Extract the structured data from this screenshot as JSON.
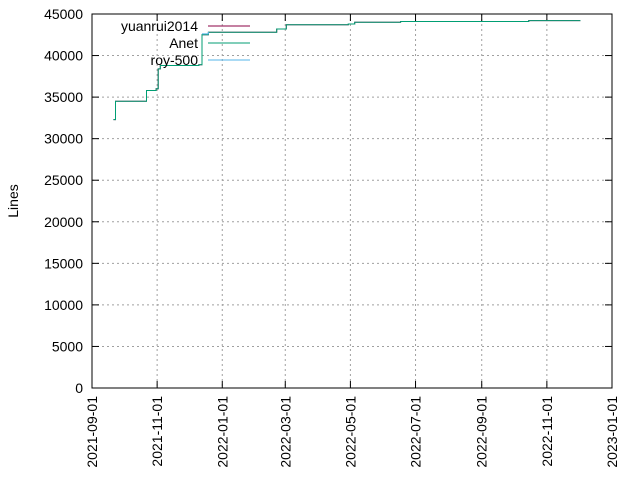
{
  "chart_data": {
    "type": "line",
    "title": "",
    "xlabel": "",
    "ylabel": "Lines",
    "xlim": [
      "2021-09-01",
      "2023-01-01"
    ],
    "ylim": [
      0,
      45000
    ],
    "x_ticks": [
      "2021-09-01",
      "2021-11-01",
      "2022-01-01",
      "2022-03-01",
      "2022-05-01",
      "2022-07-01",
      "2022-09-01",
      "2022-11-01",
      "2023-01-01"
    ],
    "y_ticks": [
      "0",
      "5000",
      "10000",
      "15000",
      "20000",
      "25000",
      "30000",
      "35000",
      "40000",
      "45000"
    ],
    "grid": true,
    "legend_position": "top-left",
    "series": [
      {
        "name": "yuanrui2014",
        "color": "#8b0046",
        "points": [
          {
            "x": "2021-09-21",
            "y": 32300
          },
          {
            "x": "2021-09-23",
            "y": 34500
          },
          {
            "x": "2021-10-13",
            "y": 34500
          },
          {
            "x": "2021-10-22",
            "y": 35800
          },
          {
            "x": "2021-10-31",
            "y": 36000
          },
          {
            "x": "2021-11-02",
            "y": 38400
          },
          {
            "x": "2021-11-04",
            "y": 38800
          },
          {
            "x": "2021-12-10",
            "y": 38900
          },
          {
            "x": "2021-12-13",
            "y": 42500
          },
          {
            "x": "2021-12-19",
            "y": 42800
          },
          {
            "x": "2022-02-21",
            "y": 43200
          },
          {
            "x": "2022-03-02",
            "y": 43700
          },
          {
            "x": "2022-04-29",
            "y": 43800
          },
          {
            "x": "2022-05-05",
            "y": 44000
          },
          {
            "x": "2022-06-17",
            "y": 44100
          },
          {
            "x": "2022-10-15",
            "y": 44200
          },
          {
            "x": "2022-12-02",
            "y": 44250
          }
        ]
      },
      {
        "name": "Anet",
        "color": "#009e73",
        "points": [
          {
            "x": "2021-09-21",
            "y": 32300
          },
          {
            "x": "2021-09-23",
            "y": 34500
          },
          {
            "x": "2021-10-13",
            "y": 34500
          },
          {
            "x": "2021-10-22",
            "y": 35800
          },
          {
            "x": "2021-10-31",
            "y": 36000
          },
          {
            "x": "2021-11-02",
            "y": 38400
          },
          {
            "x": "2021-11-04",
            "y": 38800
          },
          {
            "x": "2021-12-10",
            "y": 38900
          },
          {
            "x": "2021-12-13",
            "y": 42500
          },
          {
            "x": "2021-12-19",
            "y": 42800
          },
          {
            "x": "2022-02-21",
            "y": 43200
          },
          {
            "x": "2022-03-02",
            "y": 43700
          },
          {
            "x": "2022-04-29",
            "y": 43800
          },
          {
            "x": "2022-05-05",
            "y": 44000
          },
          {
            "x": "2022-06-17",
            "y": 44100
          },
          {
            "x": "2022-10-15",
            "y": 44200
          },
          {
            "x": "2022-12-02",
            "y": 44250
          }
        ]
      },
      {
        "name": "roy-500",
        "color": "#56b4e9",
        "points": [
          {
            "x": "2021-12-13",
            "y": 42600
          },
          {
            "x": "2021-12-19",
            "y": 42850
          }
        ]
      }
    ]
  }
}
